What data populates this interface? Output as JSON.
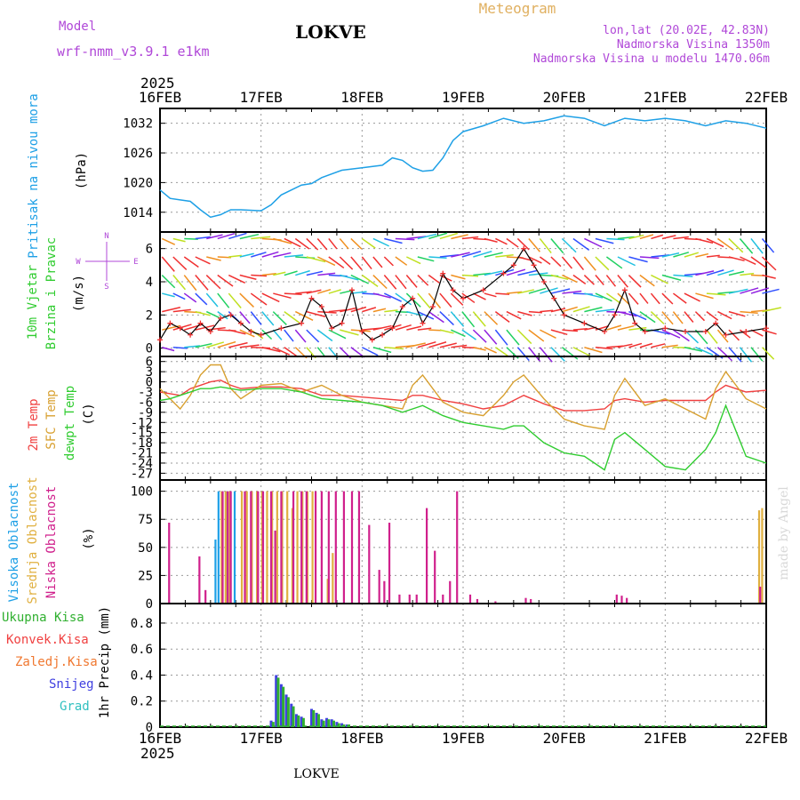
{
  "header": {
    "model_label": "Model",
    "model_name": "wrf-nmm_v3.9.1  e1km",
    "station": "LOKVE",
    "product": "Meteogram",
    "lonlat": "lon,lat (20.02E, 42.83N)",
    "elevation": "Nadmorska Visina 1350m",
    "model_elevation": "Nadmorska Visina u modelu 1470.06m"
  },
  "x_axis": {
    "year": "2025",
    "ticks": [
      "16FEB",
      "17FEB",
      "18FEB",
      "19FEB",
      "20FEB",
      "21FEB",
      "22FEB"
    ],
    "range_days": [
      0,
      6
    ]
  },
  "footer": {
    "station": "LOKVE",
    "credit": "made by Angel"
  },
  "panels": {
    "pressure": {
      "ylabel_name": "Pritisak na nivou mora",
      "ylabel_unit": "(hPa)",
      "ticks": [
        "1014",
        "1020",
        "1026",
        "1032"
      ]
    },
    "wind": {
      "ylabel_1": "10m Vjetar",
      "ylabel_2": "Brzina i Pravac",
      "ylabel_unit": "(m/s)",
      "compass_n": "N",
      "compass_w": "W",
      "compass_e": "E",
      "compass_s": "S",
      "ticks": [
        "0",
        "2",
        "4",
        "6"
      ]
    },
    "temperature": {
      "label_2m": "2m Temp",
      "label_sfc": "SFC Temp",
      "label_dew": "dewpt Temp",
      "ylabel_unit": "(C)",
      "ticks": [
        "6",
        "3",
        "0",
        "-3",
        "-6",
        "-9",
        "-12",
        "-15",
        "-18",
        "-21",
        "-24",
        "-27"
      ]
    },
    "cloud": {
      "label_high": "Visoka Oblacnost",
      "label_mid": "Srednja Oblacnost",
      "label_low": "Niska Oblacnost",
      "ylabel_unit": "(%)",
      "ticks": [
        "0",
        "25",
        "50",
        "75",
        "100"
      ]
    },
    "precip": {
      "legend_total": "Ukupna Kisa",
      "legend_conv": "Konvek.Kisa",
      "legend_frz": "Zaledj.Kisa",
      "legend_snow": "Snijeg",
      "legend_graupel": "Grad",
      "ylabel": "1hr Precip (mm)",
      "ticks": [
        "0",
        "0.2",
        "0.4",
        "0.6",
        "0.8"
      ]
    }
  },
  "colors": {
    "pressure": "#1ea0e6",
    "temp2m": "#f04040",
    "sfc": "#d8a030",
    "dew": "#30cc30",
    "high": "#1ea0e6",
    "mid": "#e0b040",
    "low": "#d0208c",
    "snow": "#4040e0",
    "rain": "#30b030",
    "graupel": "#30c0c0",
    "header_purple": "#b048d8",
    "header_gold": "#e0b060"
  },
  "chart_data": {
    "type": "line",
    "x_unit": "days since 16FEB 2025 00UTC",
    "pressure_hpa": {
      "ylim": [
        1010,
        1035
      ],
      "x": [
        0,
        0.1,
        0.2,
        0.3,
        0.4,
        0.5,
        0.6,
        0.7,
        0.8,
        1.0,
        1.1,
        1.2,
        1.4,
        1.5,
        1.6,
        1.8,
        2.0,
        2.2,
        2.3,
        2.4,
        2.5,
        2.6,
        2.7,
        2.8,
        2.9,
        3.0,
        3.2,
        3.4,
        3.6,
        3.8,
        4.0,
        4.2,
        4.4,
        4.6,
        4.8,
        5.0,
        5.2,
        5.4,
        5.6,
        5.8,
        6.0
      ],
      "y": [
        1018.5,
        1016.8,
        1016.5,
        1016.2,
        1014.5,
        1013.0,
        1013.5,
        1014.5,
        1014.5,
        1014.3,
        1015.5,
        1017.5,
        1019.5,
        1019.8,
        1021.0,
        1022.5,
        1023.0,
        1023.5,
        1025.0,
        1024.5,
        1023.0,
        1022.3,
        1022.5,
        1025.0,
        1028.5,
        1030.3,
        1031.5,
        1033.0,
        1032.0,
        1032.5,
        1033.5,
        1033.0,
        1031.5,
        1033.0,
        1032.5,
        1033.0,
        1032.5,
        1031.5,
        1032.5,
        1032.0,
        1031.0
      ]
    },
    "wind_speed_ms": {
      "ylim": [
        -0.5,
        7
      ],
      "x": [
        0,
        0.1,
        0.2,
        0.3,
        0.4,
        0.5,
        0.6,
        0.7,
        0.8,
        0.9,
        1.0,
        1.2,
        1.4,
        1.5,
        1.6,
        1.7,
        1.8,
        1.9,
        2.0,
        2.1,
        2.2,
        2.3,
        2.4,
        2.5,
        2.6,
        2.7,
        2.8,
        2.9,
        3.0,
        3.2,
        3.4,
        3.5,
        3.6,
        3.7,
        3.8,
        3.9,
        4.0,
        4.2,
        4.4,
        4.5,
        4.6,
        4.7,
        4.8,
        5.0,
        5.2,
        5.4,
        5.5,
        5.6,
        5.8,
        6.0
      ],
      "y": [
        0.5,
        1.5,
        1.2,
        0.8,
        1.5,
        1.0,
        1.8,
        2.0,
        1.5,
        1.0,
        0.8,
        1.2,
        1.5,
        3.0,
        2.5,
        1.2,
        1.5,
        3.5,
        1.0,
        0.5,
        0.8,
        1.2,
        2.5,
        3.0,
        1.5,
        2.5,
        4.5,
        3.5,
        3.0,
        3.5,
        4.5,
        5.0,
        6.0,
        5.0,
        4.0,
        3.0,
        2.0,
        1.5,
        1.0,
        2.0,
        3.5,
        1.5,
        1.0,
        1.2,
        1.0,
        1.0,
        1.5,
        0.8,
        1.0,
        1.2
      ]
    },
    "temp_c": {
      "ylim": [
        -29,
        7.5
      ],
      "x": [
        0,
        0.1,
        0.2,
        0.3,
        0.4,
        0.5,
        0.6,
        0.7,
        0.8,
        1.0,
        1.2,
        1.4,
        1.5,
        1.6,
        1.8,
        2.0,
        2.2,
        2.4,
        2.5,
        2.6,
        2.8,
        3.0,
        3.2,
        3.4,
        3.5,
        3.6,
        3.8,
        4.0,
        4.2,
        4.4,
        4.5,
        4.6,
        4.8,
        5.0,
        5.2,
        5.4,
        5.5,
        5.6,
        5.8,
        6.0
      ],
      "series": [
        {
          "name": "2m Temp",
          "y": [
            -3,
            -3.5,
            -4,
            -2,
            -1,
            0,
            0.5,
            -1,
            -2,
            -1.5,
            -1.5,
            -2,
            -3,
            -4,
            -4,
            -4.5,
            -5,
            -5.5,
            -4,
            -4,
            -5.5,
            -6.5,
            -8,
            -7,
            -5.5,
            -4,
            -6.5,
            -8.5,
            -8.5,
            -8,
            -5.5,
            -5,
            -6,
            -5.5,
            -5.5,
            -5.5,
            -3,
            -1,
            -3,
            -2.5
          ]
        },
        {
          "name": "SFC Temp",
          "y": [
            -2,
            -5,
            -8,
            -4,
            2,
            5,
            5,
            -2,
            -5,
            -1,
            -0.5,
            -3,
            -2,
            -1,
            -4,
            -6,
            -7,
            -8,
            -1,
            2,
            -6,
            -9,
            -10,
            -4,
            0,
            2,
            -5,
            -11,
            -13,
            -14,
            -4,
            1,
            -7,
            -5,
            -8,
            -11,
            -2,
            3,
            -5,
            -8
          ]
        },
        {
          "name": "dewpt Temp",
          "y": [
            -5.5,
            -5,
            -4,
            -3,
            -2,
            -2,
            -1.5,
            -2,
            -2.5,
            -2,
            -2,
            -3,
            -4,
            -5,
            -5.5,
            -6,
            -7,
            -9,
            -8,
            -7,
            -10,
            -12,
            -13,
            -14,
            -13,
            -13,
            -18,
            -21,
            -22,
            -26,
            -17,
            -15,
            -20,
            -25,
            -26,
            -20,
            -15,
            -7,
            -22,
            -24
          ]
        }
      ]
    },
    "cloud_pct": {
      "ylim": [
        0,
        100
      ],
      "series": [
        {
          "name": "Visoka Oblacnost",
          "x": [
            0.55,
            0.58,
            0.62,
            0.66,
            0.7,
            0.74
          ],
          "y": [
            57,
            100,
            100,
            100,
            100,
            100
          ]
        },
        {
          "name": "Srednja Oblacnost",
          "x": [
            0.6,
            0.64,
            0.68,
            0.8,
            0.85,
            0.9,
            0.95,
            1.0,
            1.05,
            1.1,
            1.15,
            1.2,
            1.25,
            1.3,
            1.35,
            1.4,
            1.45,
            1.5,
            1.65,
            1.7,
            5.92,
            5.95
          ],
          "y": [
            100,
            100,
            100,
            100,
            100,
            100,
            100,
            100,
            100,
            100,
            100,
            100,
            100,
            85,
            100,
            100,
            100,
            100,
            22,
            45,
            83,
            85
          ]
        },
        {
          "name": "Niska Oblacnost",
          "x": [
            0.07,
            0.37,
            0.43,
            0.6,
            0.65,
            0.68,
            0.82,
            0.88,
            0.95,
            1.0,
            1.08,
            1.12,
            1.18,
            1.3,
            1.38,
            1.43,
            1.52,
            1.58,
            1.65,
            1.72,
            1.8,
            1.88,
            1.95,
            2.05,
            2.15,
            2.2,
            2.25,
            2.35,
            2.45,
            2.52,
            2.62,
            2.7,
            2.78,
            2.85,
            2.92,
            3.05,
            3.12,
            3.3,
            3.6,
            3.65,
            4.5,
            4.55,
            4.6,
            5.92
          ],
          "y": [
            72,
            42,
            12,
            100,
            100,
            100,
            100,
            100,
            100,
            100,
            100,
            65,
            100,
            100,
            100,
            100,
            100,
            100,
            100,
            100,
            100,
            100,
            100,
            70,
            30,
            20,
            72,
            8,
            8,
            8,
            85,
            47,
            8,
            20,
            100,
            8,
            4,
            2,
            5,
            4,
            8,
            7,
            5,
            15
          ]
        }
      ]
    },
    "precip_mm": {
      "ylim": [
        0,
        0.95
      ],
      "series": [
        {
          "name": "Snijeg",
          "x": [
            1.1,
            1.15,
            1.2,
            1.25,
            1.3,
            1.35,
            1.4,
            1.5,
            1.55,
            1.6,
            1.65,
            1.7,
            1.75,
            1.8,
            1.85
          ],
          "y": [
            0.05,
            0.4,
            0.33,
            0.25,
            0.18,
            0.1,
            0.08,
            0.14,
            0.11,
            0.06,
            0.07,
            0.06,
            0.04,
            0.03,
            0.02
          ]
        },
        {
          "name": "Ukupna Kisa",
          "x": [
            1.12,
            1.17,
            1.22,
            1.27,
            1.32,
            1.37,
            1.42,
            1.52,
            1.57,
            1.62,
            1.67,
            1.72,
            1.77,
            1.82,
            1.87
          ],
          "y": [
            0.04,
            0.38,
            0.31,
            0.23,
            0.16,
            0.09,
            0.07,
            0.13,
            0.1,
            0.05,
            0.06,
            0.05,
            0.03,
            0.02,
            0.02
          ]
        }
      ]
    }
  }
}
